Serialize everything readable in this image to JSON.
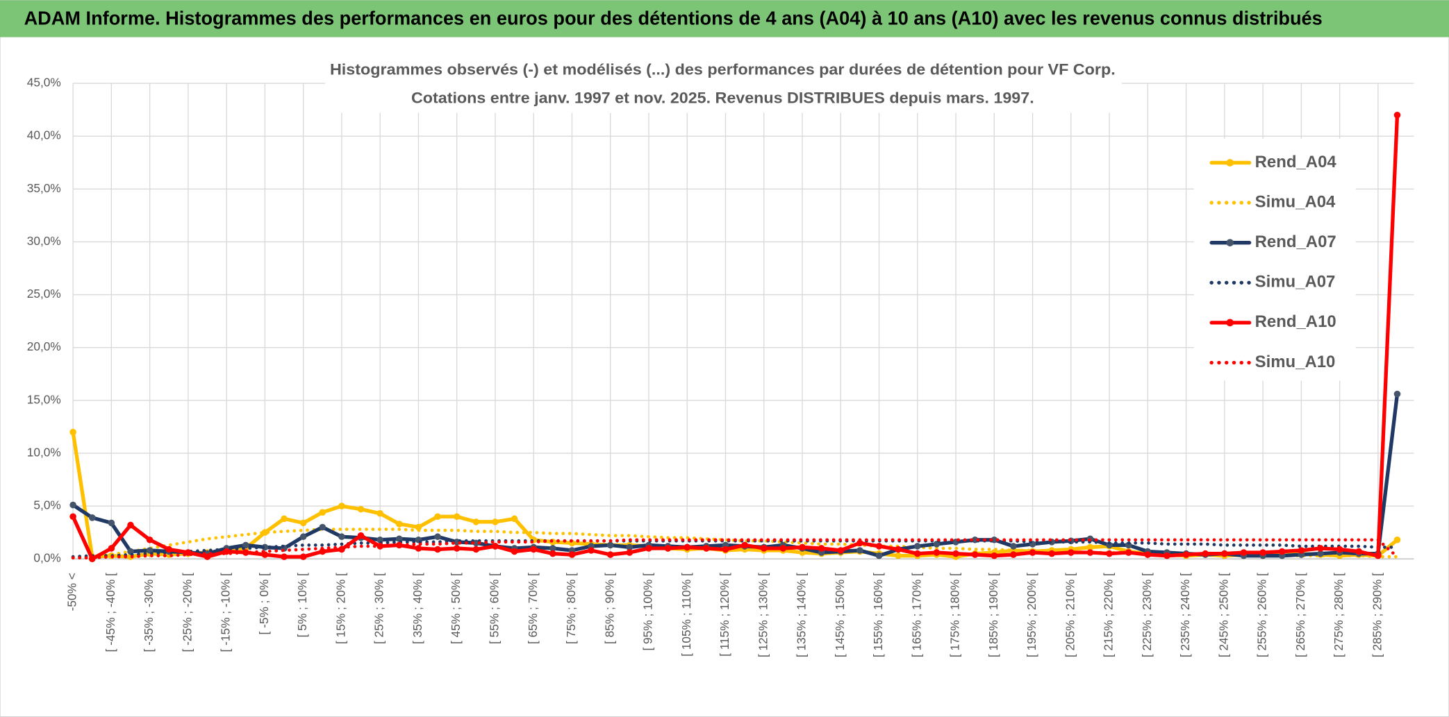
{
  "header": {
    "title": "ADAM Informe. Histogrammes des performances en euros pour des détentions de 4 ans (A04) à 10 ans (A10) avec les revenus connus distribués"
  },
  "chart_data": {
    "type": "line",
    "title": "Histogrammes observés (-) et modélisés (...) des performances par durées de détention pour VF Corp.",
    "subtitle": "Cotations entre janv. 1997 et nov. 2025. Revenus DISTRIBUES depuis mars. 1997.",
    "categories": [
      "-50% <",
      null,
      "[ -45% ; -40% [",
      null,
      "[ -35% ; -30% [",
      null,
      "[ -25% ; -20% [",
      null,
      "[ -15% ; -10% [",
      null,
      "[ -5% ; 0% [",
      null,
      "[ 5% ; 10% [",
      null,
      "[ 15% ; 20% [",
      null,
      "[ 25% ; 30% [",
      null,
      "[ 35% ; 40% [",
      null,
      "[ 45% ; 50% [",
      null,
      "[ 55% ; 60% [",
      null,
      "[ 65% ; 70% [",
      null,
      "[ 75% ; 80% [",
      null,
      "[ 85% ; 90% [",
      null,
      "[ 95% ; 100% [",
      null,
      "[ 105% ; 110% [",
      null,
      "[ 115% ; 120% [",
      null,
      "[ 125% ; 130% [",
      null,
      "[ 135% ; 140% [",
      null,
      "[ 145% ; 150% [",
      null,
      "[ 155% ; 160% [",
      null,
      "[ 165% ; 170% [",
      null,
      "[ 175% ; 180% [",
      null,
      "[ 185% ; 190% [",
      null,
      "[ 195% ; 200% [",
      null,
      "[ 205% ; 210% [",
      null,
      "[ 215% ; 220% [",
      null,
      "[ 225% ; 230% [",
      null,
      "[ 235% ; 240% [",
      null,
      "[ 245% ; 250% [",
      null,
      "[ 255% ; 260% [",
      null,
      "[ 265% ; 270% [",
      null,
      "[ 275% ; 280% [",
      null,
      "[ 285% ; 290% [",
      null
    ],
    "series": [
      {
        "name": "Rend_A04",
        "color": "#ffc000",
        "line_style": "solid",
        "values": [
          12.0,
          0.2,
          0.3,
          0.2,
          0.5,
          0.4,
          0.5,
          0.6,
          0.7,
          1.0,
          2.5,
          3.8,
          3.4,
          4.4,
          5.0,
          4.7,
          4.3,
          3.3,
          3.0,
          4.0,
          4.0,
          3.5,
          3.5,
          3.8,
          1.8,
          1.6,
          1.5,
          1.4,
          1.3,
          1.3,
          1.2,
          1.0,
          0.9,
          1.0,
          0.8,
          0.9,
          0.8,
          0.8,
          0.6,
          0.5,
          0.6,
          0.7,
          0.5,
          0.3,
          0.3,
          0.4,
          0.2,
          0.5,
          0.6,
          0.8,
          0.7,
          0.8,
          0.9,
          1.1,
          1.2,
          0.7,
          0.5,
          0.4,
          0.3,
          0.4,
          0.3,
          0.4,
          0.3,
          0.4,
          0.5,
          0.4,
          0.3,
          0.4,
          0.3,
          1.8
        ]
      },
      {
        "name": "Simu_A04",
        "color": "#ffc000",
        "line_style": "dotted",
        "values": [
          0.1,
          0.2,
          0.4,
          0.7,
          1.0,
          1.3,
          1.6,
          1.9,
          2.1,
          2.3,
          2.5,
          2.6,
          2.7,
          2.8,
          2.8,
          2.8,
          2.8,
          2.8,
          2.7,
          2.7,
          2.7,
          2.6,
          2.6,
          2.5,
          2.5,
          2.4,
          2.4,
          2.3,
          2.2,
          2.2,
          2.1,
          2.0,
          2.0,
          1.9,
          1.8,
          1.7,
          1.7,
          1.6,
          1.5,
          1.4,
          1.4,
          1.3,
          1.2,
          1.2,
          1.1,
          1.0,
          1.0,
          0.9,
          0.9,
          0.8,
          0.8,
          0.7,
          0.7,
          0.6,
          0.6,
          0.6,
          0.5,
          0.5,
          0.5,
          0.4,
          0.4,
          0.4,
          0.4,
          0.3,
          0.3,
          0.3,
          0.3,
          0.3,
          0.2,
          0.2
        ]
      },
      {
        "name": "Rend_A07",
        "color": "#1f3864",
        "line_style": "solid",
        "values": [
          5.1,
          3.9,
          3.4,
          0.7,
          0.8,
          0.7,
          0.6,
          0.5,
          1.0,
          1.3,
          1.1,
          1.0,
          2.1,
          3.0,
          2.1,
          2.0,
          1.8,
          1.9,
          1.8,
          2.1,
          1.6,
          1.5,
          1.2,
          1.0,
          1.1,
          1.0,
          0.8,
          1.2,
          1.3,
          1.1,
          1.3,
          1.2,
          1.1,
          1.2,
          1.3,
          1.2,
          1.1,
          1.3,
          1.0,
          0.6,
          0.7,
          0.8,
          0.3,
          0.9,
          1.2,
          1.4,
          1.6,
          1.8,
          1.8,
          1.2,
          1.4,
          1.6,
          1.7,
          1.9,
          1.3,
          1.3,
          0.7,
          0.6,
          0.5,
          0.4,
          0.5,
          0.3,
          0.3,
          0.3,
          0.4,
          0.5,
          0.6,
          0.5,
          0.5,
          15.6
        ]
      },
      {
        "name": "Simu_A07",
        "color": "#1f3864",
        "line_style": "dotted",
        "values": [
          0.2,
          0.3,
          0.3,
          0.4,
          0.5,
          0.6,
          0.7,
          0.8,
          0.9,
          1.0,
          1.1,
          1.2,
          1.3,
          1.3,
          1.4,
          1.5,
          1.5,
          1.6,
          1.6,
          1.6,
          1.7,
          1.7,
          1.7,
          1.7,
          1.7,
          1.7,
          1.7,
          1.7,
          1.7,
          1.7,
          1.7,
          1.7,
          1.7,
          1.7,
          1.7,
          1.7,
          1.7,
          1.7,
          1.7,
          1.7,
          1.7,
          1.7,
          1.7,
          1.7,
          1.7,
          1.7,
          1.7,
          1.7,
          1.7,
          1.7,
          1.6,
          1.6,
          1.6,
          1.6,
          1.5,
          1.5,
          1.5,
          1.4,
          1.4,
          1.4,
          1.3,
          1.3,
          1.3,
          1.3,
          1.2,
          1.2,
          1.2,
          1.2,
          1.1,
          1.1
        ]
      },
      {
        "name": "Rend_A10",
        "color": "#ff0000",
        "line_style": "solid",
        "values": [
          4.0,
          0.0,
          1.0,
          3.2,
          1.8,
          0.9,
          0.6,
          0.2,
          0.7,
          0.6,
          0.4,
          0.2,
          0.2,
          0.7,
          0.9,
          2.2,
          1.2,
          1.3,
          1.0,
          0.9,
          1.0,
          0.9,
          1.2,
          0.7,
          0.9,
          0.5,
          0.4,
          0.8,
          0.4,
          0.6,
          1.0,
          1.0,
          1.1,
          1.0,
          0.9,
          1.3,
          1.0,
          1.0,
          1.1,
          1.0,
          0.8,
          1.5,
          1.2,
          0.9,
          0.5,
          0.6,
          0.5,
          0.4,
          0.3,
          0.4,
          0.6,
          0.5,
          0.6,
          0.6,
          0.5,
          0.6,
          0.4,
          0.3,
          0.4,
          0.5,
          0.5,
          0.6,
          0.6,
          0.7,
          0.8,
          1.0,
          0.9,
          0.7,
          0.3,
          42.0
        ]
      },
      {
        "name": "Simu_A10",
        "color": "#ff0000",
        "line_style": "dotted",
        "values": [
          0.1,
          0.1,
          0.2,
          0.2,
          0.3,
          0.3,
          0.4,
          0.5,
          0.5,
          0.6,
          0.7,
          0.8,
          0.9,
          1.0,
          1.1,
          1.2,
          1.2,
          1.3,
          1.4,
          1.4,
          1.5,
          1.5,
          1.6,
          1.6,
          1.6,
          1.7,
          1.7,
          1.7,
          1.7,
          1.8,
          1.8,
          1.8,
          1.8,
          1.8,
          1.8,
          1.8,
          1.8,
          1.8,
          1.8,
          1.8,
          1.8,
          1.8,
          1.8,
          1.8,
          1.8,
          1.8,
          1.8,
          1.8,
          1.8,
          1.8,
          1.8,
          1.8,
          1.8,
          1.8,
          1.8,
          1.8,
          1.8,
          1.8,
          1.8,
          1.8,
          1.8,
          1.8,
          1.8,
          1.8,
          1.8,
          1.8,
          1.8,
          1.8,
          1.8,
          0.2
        ]
      }
    ],
    "ylim": [
      0,
      45
    ],
    "yticks": [
      {
        "value": 0,
        "label": "0,0%"
      },
      {
        "value": 5,
        "label": "5,0%"
      },
      {
        "value": 10,
        "label": "10,0%"
      },
      {
        "value": 15,
        "label": "15,0%"
      },
      {
        "value": 20,
        "label": "20,0%"
      },
      {
        "value": 25,
        "label": "25,0%"
      },
      {
        "value": 30,
        "label": "30,0%"
      },
      {
        "value": 35,
        "label": "35,0%"
      },
      {
        "value": 40,
        "label": "40,0%"
      },
      {
        "value": 45,
        "label": "45,0%"
      }
    ],
    "grid": true,
    "legend": "right"
  }
}
